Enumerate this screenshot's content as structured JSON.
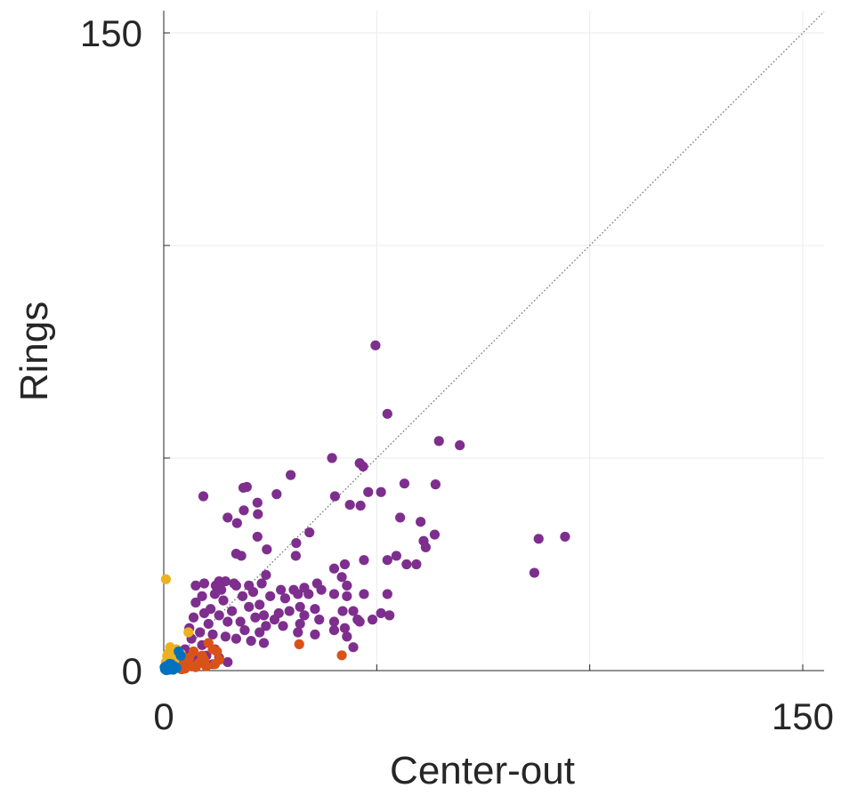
{
  "chart_data": {
    "type": "scatter",
    "xlabel": "Center-out",
    "ylabel": "Rings",
    "xlim": [
      0,
      150
    ],
    "ylim": [
      0,
      150
    ],
    "grid": true,
    "reference_line": "identity (y = x), dotted",
    "x_tick_labels": [
      {
        "value": 0,
        "label": "0"
      },
      {
        "value": 150,
        "label": "150"
      }
    ],
    "y_tick_labels": [
      {
        "value": 0,
        "label": "0"
      },
      {
        "value": 150,
        "label": "150"
      }
    ],
    "minor_ticks": [
      50,
      100
    ],
    "series": [
      {
        "color": "#7e2f8e",
        "points": [
          [
            49.7,
            76.5
          ],
          [
            52.5,
            60.4
          ],
          [
            64.6,
            54.0
          ],
          [
            69.5,
            53.0
          ],
          [
            39.5,
            50.0
          ],
          [
            46.0,
            48.8
          ],
          [
            46.8,
            48.0
          ],
          [
            29.8,
            46.0
          ],
          [
            56.5,
            44.0
          ],
          [
            63.8,
            43.8
          ],
          [
            18.7,
            43.0
          ],
          [
            19.5,
            43.2
          ],
          [
            51.0,
            42.0
          ],
          [
            40.2,
            41.0
          ],
          [
            48.0,
            42.0
          ],
          [
            26.5,
            41.5
          ],
          [
            9.3,
            41.0
          ],
          [
            22.0,
            39.5
          ],
          [
            43.7,
            39.0
          ],
          [
            46.2,
            38.8
          ],
          [
            18.8,
            37.7
          ],
          [
            22.1,
            36.8
          ],
          [
            15.0,
            36.0
          ],
          [
            55.5,
            36.0
          ],
          [
            60.3,
            35.0
          ],
          [
            17.2,
            34.7
          ],
          [
            34.2,
            32.5
          ],
          [
            22.0,
            31.5
          ],
          [
            88.0,
            31.0
          ],
          [
            94.2,
            31.5
          ],
          [
            63.6,
            32.0
          ],
          [
            61.5,
            29.0
          ],
          [
            61.0,
            30.5
          ],
          [
            31.1,
            30.0
          ],
          [
            24.2,
            28.5
          ],
          [
            18.2,
            27.0
          ],
          [
            17.0,
            27.5
          ],
          [
            31.0,
            27.0
          ],
          [
            40.0,
            24.0
          ],
          [
            47.0,
            26.0
          ],
          [
            54.6,
            27.0
          ],
          [
            57.0,
            25.0
          ],
          [
            59.3,
            25.0
          ],
          [
            52.5,
            26.0
          ],
          [
            42.5,
            25.0
          ],
          [
            87.0,
            23.0
          ],
          [
            24.0,
            22.5
          ],
          [
            41.8,
            22.0
          ],
          [
            13.0,
            21.0
          ],
          [
            14.5,
            21.0
          ],
          [
            16.5,
            20.5
          ],
          [
            9.5,
            20.5
          ],
          [
            7.5,
            20.0
          ],
          [
            12.2,
            20.0
          ],
          [
            17.0,
            20.0
          ],
          [
            20.0,
            20.0
          ],
          [
            23.0,
            20.5
          ],
          [
            27.5,
            19.0
          ],
          [
            30.5,
            19.0
          ],
          [
            33.0,
            19.5
          ],
          [
            36.0,
            20.5
          ],
          [
            43.0,
            20.0
          ],
          [
            52.5,
            18.0
          ],
          [
            13.5,
            19.0
          ],
          [
            12.0,
            18.0
          ],
          [
            18.5,
            17.5
          ],
          [
            21.0,
            18.5
          ],
          [
            25.0,
            17.5
          ],
          [
            28.5,
            17.0
          ],
          [
            31.5,
            18.0
          ],
          [
            34.0,
            18.0
          ],
          [
            37.0,
            19.0
          ],
          [
            40.0,
            18.0
          ],
          [
            43.0,
            17.5
          ],
          [
            47.0,
            18.0
          ],
          [
            9.0,
            17.5
          ],
          [
            14.0,
            16.5
          ],
          [
            7.5,
            16.0
          ],
          [
            22.5,
            15.5
          ],
          [
            32.0,
            15.0
          ],
          [
            35.5,
            14.5
          ],
          [
            42.0,
            14.0
          ],
          [
            44.5,
            14.0
          ],
          [
            51.0,
            13.5
          ],
          [
            11.0,
            14.5
          ],
          [
            16.0,
            14.0
          ],
          [
            20.0,
            15.0
          ],
          [
            23.5,
            13.0
          ],
          [
            27.0,
            13.5
          ],
          [
            29.5,
            14.0
          ],
          [
            33.0,
            13.0
          ],
          [
            36.5,
            12.0
          ],
          [
            46.0,
            11.5
          ],
          [
            49.0,
            12.0
          ],
          [
            53.0,
            13.0
          ],
          [
            9.5,
            13.5
          ],
          [
            13.0,
            13.0
          ],
          [
            18.0,
            11.5
          ],
          [
            21.5,
            12.5
          ],
          [
            24.0,
            10.5
          ],
          [
            26.0,
            12.0
          ],
          [
            32.0,
            11.0
          ],
          [
            40.0,
            11.5
          ],
          [
            42.5,
            10.0
          ],
          [
            45.5,
            12.0
          ],
          [
            7.0,
            12.5
          ],
          [
            10.5,
            11.0
          ],
          [
            15.0,
            11.5
          ],
          [
            19.0,
            9.5
          ],
          [
            22.5,
            9.0
          ],
          [
            28.0,
            10.5
          ],
          [
            31.5,
            9.0
          ],
          [
            35.5,
            8.5
          ],
          [
            40.0,
            9.5
          ],
          [
            43.0,
            8.0
          ],
          [
            6.0,
            10.0
          ],
          [
            8.5,
            9.0
          ],
          [
            11.5,
            8.5
          ],
          [
            14.5,
            8.0
          ],
          [
            17.0,
            7.5
          ],
          [
            20.5,
            7.0
          ],
          [
            23.5,
            6.5
          ],
          [
            44.5,
            5.5
          ],
          [
            6.5,
            7.5
          ],
          [
            9.0,
            6.0
          ],
          [
            12.0,
            5.0
          ],
          [
            5.0,
            5.0
          ],
          [
            7.0,
            4.0
          ],
          [
            10.0,
            3.5
          ],
          [
            13.0,
            3.0
          ],
          [
            4.5,
            3.0
          ],
          [
            6.0,
            2.0
          ],
          [
            8.0,
            2.5
          ],
          [
            3.5,
            1.5
          ],
          [
            11.5,
            1.5
          ],
          [
            15.0,
            2.0
          ]
        ]
      },
      {
        "color": "#d95319",
        "points": [
          [
            31.8,
            6.2
          ],
          [
            41.8,
            3.6
          ],
          [
            10.5,
            6.5
          ],
          [
            11.5,
            5.0
          ],
          [
            12.5,
            4.5
          ],
          [
            13.0,
            2.5
          ],
          [
            9.0,
            3.5
          ],
          [
            8.5,
            2.0
          ],
          [
            7.0,
            4.5
          ],
          [
            6.0,
            3.0
          ],
          [
            5.5,
            1.5
          ],
          [
            4.5,
            1.0
          ],
          [
            4.0,
            0.5
          ],
          [
            3.5,
            2.0
          ],
          [
            5.0,
            2.5
          ],
          [
            6.5,
            1.0
          ],
          [
            7.5,
            0.8
          ],
          [
            8.0,
            1.5
          ],
          [
            3.0,
            0.8
          ],
          [
            10.0,
            1.0
          ],
          [
            9.5,
            2.5
          ],
          [
            12.0,
            1.5
          ],
          [
            5.0,
            0.5
          ],
          [
            4.2,
            0.3
          ]
        ]
      },
      {
        "color": "#edb120",
        "points": [
          [
            0.5,
            21.5
          ],
          [
            5.8,
            9.0
          ],
          [
            0.8,
            3.5
          ],
          [
            1.0,
            4.0
          ],
          [
            1.5,
            3.0
          ],
          [
            0.5,
            2.0
          ],
          [
            2.0,
            4.5
          ],
          [
            1.5,
            5.5
          ],
          [
            2.5,
            2.5
          ],
          [
            0.8,
            1.5
          ],
          [
            3.0,
            5.0
          ],
          [
            1.2,
            2.0
          ],
          [
            3.5,
            3.5
          ],
          [
            2.2,
            1.8
          ],
          [
            4.0,
            4.0
          ]
        ]
      },
      {
        "color": "#0072bd",
        "points": [
          [
            0.3,
            0.3
          ],
          [
            0.8,
            0.5
          ],
          [
            1.2,
            0.2
          ],
          [
            0.5,
            1.0
          ],
          [
            1.5,
            0.8
          ],
          [
            2.0,
            0.4
          ],
          [
            0.2,
            0.8
          ],
          [
            1.0,
            1.2
          ],
          [
            2.5,
            1.0
          ],
          [
            3.5,
            4.5
          ],
          [
            4.0,
            3.5
          ],
          [
            3.0,
            0.6
          ],
          [
            1.8,
            1.5
          ],
          [
            0.6,
            0.1
          ],
          [
            2.2,
            0.2
          ],
          [
            1.4,
            1.6
          ]
        ]
      }
    ]
  }
}
